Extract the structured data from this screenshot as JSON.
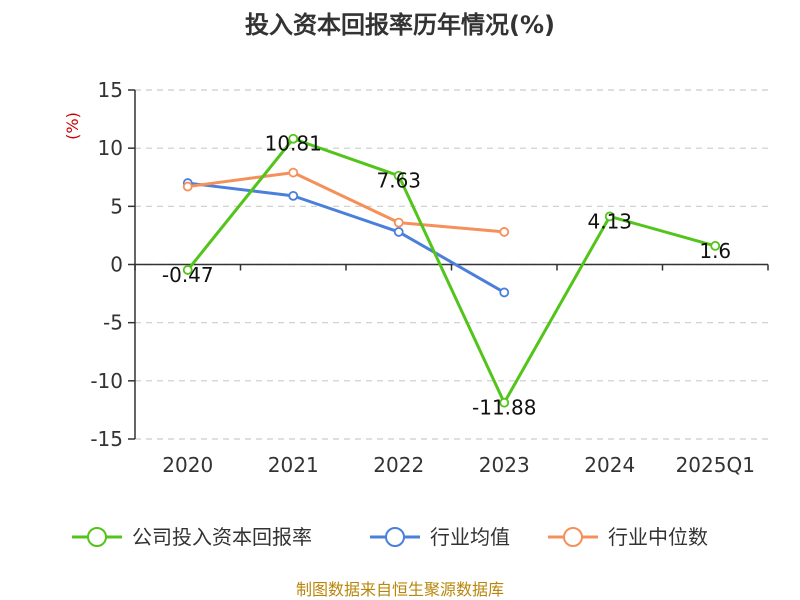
{
  "chart_data": {
    "type": "line",
    "title": "投入资本回报率历年情况(%)",
    "ylabel": "(%)",
    "xlabel": "",
    "categories": [
      "2020",
      "2021",
      "2022",
      "2023",
      "2024",
      "2025Q1"
    ],
    "ylim": [
      -15,
      15
    ],
    "yticks": [
      15,
      10,
      5,
      0,
      -5,
      -10,
      -15
    ],
    "grid": true,
    "legend_position": "bottom",
    "series": [
      {
        "name": "公司投入资本回报率",
        "color": "#52c41a",
        "values": [
          -0.47,
          10.81,
          7.63,
          -11.88,
          4.13,
          1.6
        ],
        "labels": [
          "-0.47",
          "10.81",
          "7.63",
          "-11.88",
          "4.13",
          "1.6"
        ]
      },
      {
        "name": "行业均值",
        "color": "#4a7fdc",
        "values": [
          7.0,
          5.9,
          2.8,
          -2.4,
          null,
          null
        ]
      },
      {
        "name": "行业中位数",
        "color": "#f5905a",
        "values": [
          6.7,
          7.9,
          3.6,
          2.8,
          null,
          null
        ]
      }
    ],
    "source": "制图数据来自恒生聚源数据库"
  }
}
